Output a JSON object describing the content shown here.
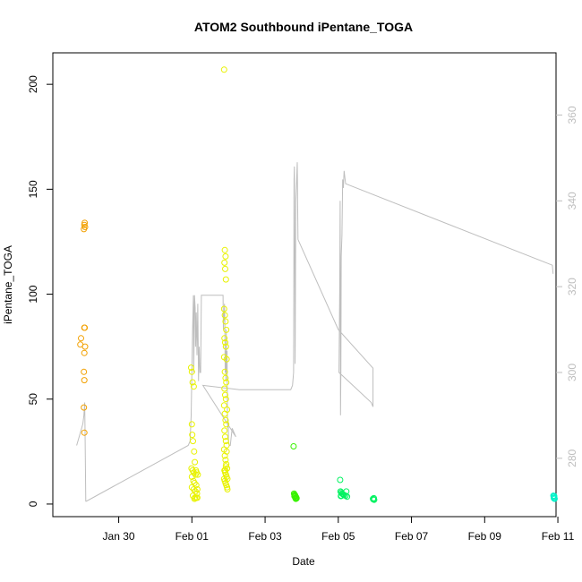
{
  "chart_data": {
    "type": "scatter",
    "title": "ATOM2 Southbound iPentane_TOGA",
    "xlabel": "Date",
    "ylabel": "iPentane_TOGA",
    "x_date_start": "2017-01-29",
    "xlim_days": [
      -0.8,
      12.95
    ],
    "ylim": [
      -6,
      215
    ],
    "y2lim": [
      266.4,
      374.5
    ],
    "x_ticks": [
      {
        "label": "Jan 30",
        "day": 1
      },
      {
        "label": "Feb 01",
        "day": 3
      },
      {
        "label": "Feb 03",
        "day": 5
      },
      {
        "label": "Feb 05",
        "day": 7
      },
      {
        "label": "Feb 07",
        "day": 9
      },
      {
        "label": "Feb 09",
        "day": 11
      },
      {
        "label": "Feb 11",
        "day": 13
      }
    ],
    "y_ticks": [
      0,
      50,
      100,
      150,
      200
    ],
    "y2_ticks": [
      280,
      300,
      320,
      340,
      360
    ],
    "grid": false,
    "legend": "none",
    "line_color": "#bebebe",
    "series": [
      {
        "color": "#f2a000",
        "points": [
          [
            -0.05,
            76
          ],
          [
            -0.03,
            79
          ],
          [
            0.05,
            131
          ],
          [
            0.06,
            133
          ],
          [
            0.07,
            134
          ],
          [
            0.08,
            132
          ],
          [
            0.06,
            84
          ],
          [
            0.07,
            84
          ],
          [
            0.08,
            75
          ],
          [
            0.06,
            72
          ],
          [
            0.05,
            63
          ],
          [
            0.06,
            59
          ],
          [
            0.05,
            46
          ],
          [
            0.06,
            34
          ]
        ]
      },
      {
        "color": "#e8f200",
        "points": [
          [
            2.98,
            65
          ],
          [
            3.0,
            63
          ],
          [
            3.02,
            58
          ],
          [
            3.05,
            56
          ],
          [
            3.0,
            38
          ],
          [
            3.01,
            33
          ],
          [
            3.03,
            30
          ],
          [
            3.06,
            25
          ],
          [
            3.08,
            20
          ],
          [
            2.99,
            17
          ],
          [
            3.02,
            16
          ],
          [
            3.05,
            15
          ],
          [
            3.1,
            14
          ],
          [
            3.0,
            13
          ],
          [
            3.04,
            11
          ],
          [
            3.07,
            10
          ],
          [
            3.12,
            9
          ],
          [
            3.0,
            8
          ],
          [
            3.05,
            7
          ],
          [
            3.1,
            6
          ],
          [
            3.14,
            5
          ],
          [
            3.03,
            4
          ],
          [
            3.08,
            3
          ],
          [
            3.12,
            3
          ],
          [
            3.15,
            3
          ],
          [
            3.07,
            2.5
          ],
          [
            3.11,
            16
          ],
          [
            3.13,
            15
          ],
          [
            3.15,
            7
          ],
          [
            3.16,
            14
          ],
          [
            3.88,
            207
          ],
          [
            3.9,
            121
          ],
          [
            3.92,
            118
          ],
          [
            3.89,
            115
          ],
          [
            3.91,
            112
          ],
          [
            3.93,
            107
          ],
          [
            3.88,
            93
          ],
          [
            3.9,
            90
          ],
          [
            3.92,
            87
          ],
          [
            3.94,
            83
          ],
          [
            3.89,
            79
          ],
          [
            3.91,
            77
          ],
          [
            3.93,
            75
          ],
          [
            3.88,
            70
          ],
          [
            3.95,
            69
          ],
          [
            3.9,
            63
          ],
          [
            3.92,
            60
          ],
          [
            3.94,
            58
          ],
          [
            3.89,
            55
          ],
          [
            3.91,
            52
          ],
          [
            3.93,
            50
          ],
          [
            3.88,
            47
          ],
          [
            3.96,
            45
          ],
          [
            3.9,
            43
          ],
          [
            3.92,
            40
          ],
          [
            3.94,
            38
          ],
          [
            3.89,
            35
          ],
          [
            3.91,
            32
          ],
          [
            3.93,
            30
          ],
          [
            3.95,
            28
          ],
          [
            3.88,
            26
          ],
          [
            3.9,
            23
          ],
          [
            3.92,
            21
          ],
          [
            3.94,
            19
          ],
          [
            3.96,
            17
          ],
          [
            3.89,
            16
          ],
          [
            3.91,
            15
          ],
          [
            3.93,
            14
          ],
          [
            3.95,
            13
          ],
          [
            3.88,
            12
          ],
          [
            3.9,
            11
          ],
          [
            3.92,
            10
          ],
          [
            3.94,
            9
          ],
          [
            3.96,
            8
          ],
          [
            3.97,
            7
          ],
          [
            3.91,
            16
          ],
          [
            3.93,
            18
          ],
          [
            3.95,
            25
          ],
          [
            3.97,
            12
          ]
        ]
      },
      {
        "color": "#39f200",
        "points": [
          [
            5.78,
            27.5
          ],
          [
            5.79,
            5
          ],
          [
            5.8,
            4.5
          ],
          [
            5.81,
            4
          ],
          [
            5.82,
            3.5
          ],
          [
            5.83,
            3
          ],
          [
            5.84,
            2.5
          ],
          [
            5.8,
            3.8
          ],
          [
            5.82,
            4.2
          ],
          [
            5.83,
            2.8
          ],
          [
            5.85,
            3.2
          ],
          [
            5.86,
            2.7
          ],
          [
            5.81,
            3.6
          ]
        ]
      },
      {
        "color": "#00f260",
        "points": [
          [
            7.05,
            11.5
          ],
          [
            7.06,
            6
          ],
          [
            7.08,
            5.5
          ],
          [
            7.1,
            5
          ],
          [
            7.12,
            4.8
          ],
          [
            7.14,
            4.5
          ],
          [
            7.16,
            4.2
          ],
          [
            7.08,
            4
          ],
          [
            7.2,
            4
          ],
          [
            7.22,
            6
          ],
          [
            7.24,
            3.5
          ],
          [
            7.07,
            3.8
          ],
          [
            7.95,
            2.5
          ],
          [
            7.96,
            2.2
          ],
          [
            7.97,
            2.8
          ],
          [
            7.98,
            2.0
          ]
        ]
      },
      {
        "color": "#00f2c9",
        "points": [
          [
            12.88,
            4
          ],
          [
            12.89,
            3.5
          ],
          [
            12.9,
            3
          ],
          [
            12.91,
            2.5
          ],
          [
            12.89,
            2.8
          ],
          [
            12.9,
            3.8
          ]
        ]
      }
    ],
    "line_series_y2": [
      [
        -0.15,
        283
      ],
      [
        -0.08,
        285
      ],
      [
        0.02,
        288
      ],
      [
        0.05,
        290
      ],
      [
        0.07,
        293
      ],
      [
        0.08,
        286
      ],
      [
        0.1,
        270
      ],
      [
        0.12,
        270
      ],
      [
        2.9,
        283
      ],
      [
        2.95,
        284
      ],
      [
        2.98,
        290
      ],
      [
        3.0,
        300
      ],
      [
        3.02,
        310
      ],
      [
        3.04,
        318
      ],
      [
        3.05,
        300
      ],
      [
        3.07,
        318
      ],
      [
        3.09,
        315
      ],
      [
        3.1,
        306
      ],
      [
        3.12,
        314
      ],
      [
        3.14,
        304
      ],
      [
        3.16,
        316
      ],
      [
        3.18,
        298
      ],
      [
        3.2,
        306
      ],
      [
        3.22,
        300
      ],
      [
        3.24,
        300
      ],
      [
        3.26,
        318
      ],
      [
        3.85,
        318
      ],
      [
        3.86,
        310
      ],
      [
        3.87,
        314
      ],
      [
        3.88,
        312
      ],
      [
        3.89,
        316
      ],
      [
        3.9,
        312
      ],
      [
        3.91,
        300
      ],
      [
        3.92,
        305
      ],
      [
        3.93,
        298
      ],
      [
        3.94,
        310
      ],
      [
        3.95,
        300
      ],
      [
        3.96,
        305
      ],
      [
        3.97,
        290
      ],
      [
        3.98,
        287
      ],
      [
        3.99,
        289
      ],
      [
        4.0,
        284
      ],
      [
        4.02,
        283
      ],
      [
        4.05,
        283
      ],
      [
        4.1,
        287
      ],
      [
        4.15,
        286
      ],
      [
        4.2,
        285
      ],
      [
        3.3,
        297
      ],
      [
        4.3,
        296
      ],
      [
        5.7,
        296
      ],
      [
        5.75,
        297
      ],
      [
        5.78,
        300
      ],
      [
        5.79,
        345
      ],
      [
        5.8,
        348
      ],
      [
        5.82,
        302
      ],
      [
        5.84,
        340
      ],
      [
        5.86,
        344
      ],
      [
        5.88,
        349
      ],
      [
        5.9,
        331
      ],
      [
        7.0,
        310
      ],
      [
        7.95,
        301
      ],
      [
        7.95,
        292
      ],
      [
        7.9,
        293
      ],
      [
        7.02,
        300
      ],
      [
        7.04,
        319
      ],
      [
        7.05,
        340
      ],
      [
        7.06,
        290
      ],
      [
        7.07,
        300
      ],
      [
        7.08,
        327
      ],
      [
        7.1,
        332
      ],
      [
        7.12,
        345
      ],
      [
        7.14,
        343
      ],
      [
        7.16,
        347
      ],
      [
        7.2,
        344
      ],
      [
        12.85,
        325
      ],
      [
        12.87,
        323
      ]
    ]
  }
}
